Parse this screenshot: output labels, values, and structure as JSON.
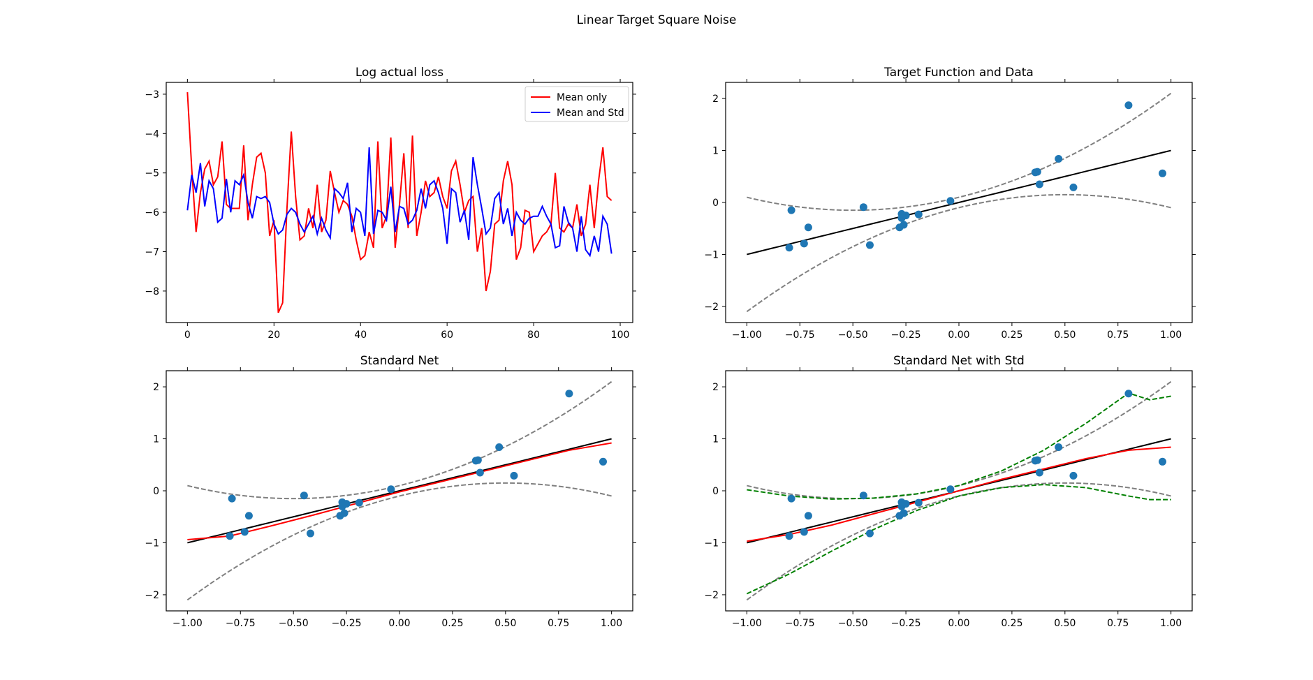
{
  "figure": {
    "suptitle": "Linear Target Square Noise"
  },
  "chart_data": [
    {
      "type": "line",
      "title": "Log actual loss",
      "xlabel": "",
      "ylabel": "",
      "xlim": [
        -4.9,
        102.9
      ],
      "ylim": [
        -8.8,
        -2.7
      ],
      "xticks": [
        0,
        20,
        40,
        60,
        80,
        100
      ],
      "yticks": [
        -8,
        -7,
        -6,
        -5,
        -4,
        -3
      ],
      "ticks_mirrored": true,
      "grid": false,
      "legend": "top-right",
      "series": [
        {
          "name": "Mean only",
          "color": "#ff0000",
          "x": [
            0,
            1,
            2,
            3,
            4,
            5,
            6,
            7,
            8,
            9,
            10,
            11,
            12,
            13,
            14,
            15,
            16,
            17,
            18,
            19,
            20,
            21,
            22,
            23,
            24,
            25,
            26,
            27,
            28,
            29,
            30,
            31,
            32,
            33,
            34,
            35,
            36,
            37,
            38,
            39,
            40,
            41,
            42,
            43,
            44,
            45,
            46,
            47,
            48,
            49,
            50,
            51,
            52,
            53,
            54,
            55,
            56,
            57,
            58,
            59,
            60,
            61,
            62,
            63,
            64,
            65,
            66,
            67,
            68,
            69,
            70,
            71,
            72,
            73,
            74,
            75,
            76,
            77,
            78,
            79,
            80,
            81,
            82,
            83,
            84,
            85,
            86,
            87,
            88,
            89,
            90,
            91,
            92,
            93,
            94,
            95,
            96,
            97,
            98
          ],
          "values": [
            -2.95,
            -4.9,
            -6.5,
            -5.5,
            -4.9,
            -4.7,
            -5.3,
            -5.1,
            -4.2,
            -5.8,
            -5.9,
            -5.9,
            -5.9,
            -4.3,
            -6.2,
            -5.3,
            -4.6,
            -4.5,
            -5.0,
            -6.6,
            -6.2,
            -8.55,
            -8.3,
            -5.9,
            -3.95,
            -5.6,
            -6.7,
            -6.6,
            -5.9,
            -6.4,
            -5.3,
            -6.5,
            -6.2,
            -4.95,
            -5.5,
            -6.0,
            -5.7,
            -5.8,
            -6.1,
            -6.7,
            -7.2,
            -7.1,
            -6.5,
            -6.9,
            -4.2,
            -6.4,
            -6.1,
            -4.1,
            -6.9,
            -5.8,
            -4.5,
            -6.4,
            -4.05,
            -6.6,
            -6.0,
            -5.2,
            -5.6,
            -5.5,
            -5.1,
            -5.6,
            -5.9,
            -4.95,
            -4.7,
            -5.3,
            -6.0,
            -5.7,
            -5.6,
            -7.0,
            -6.4,
            -8.0,
            -7.5,
            -6.3,
            -6.2,
            -5.2,
            -4.7,
            -5.3,
            -7.2,
            -6.9,
            -5.95,
            -6.0,
            -7.0,
            -6.8,
            -6.6,
            -6.5,
            -6.3,
            -5.0,
            -6.4,
            -6.5,
            -6.3,
            -6.4,
            -5.8,
            -6.6,
            -6.3,
            -5.3,
            -6.4,
            -5.2,
            -4.35,
            -5.6,
            -5.7
          ]
        },
        {
          "name": "Mean and Std",
          "color": "#0000ff",
          "x": [
            0,
            1,
            2,
            3,
            4,
            5,
            6,
            7,
            8,
            9,
            10,
            11,
            12,
            13,
            14,
            15,
            16,
            17,
            18,
            19,
            20,
            21,
            22,
            23,
            24,
            25,
            26,
            27,
            28,
            29,
            30,
            31,
            32,
            33,
            34,
            35,
            36,
            37,
            38,
            39,
            40,
            41,
            42,
            43,
            44,
            45,
            46,
            47,
            48,
            49,
            50,
            51,
            52,
            53,
            54,
            55,
            56,
            57,
            58,
            59,
            60,
            61,
            62,
            63,
            64,
            65,
            66,
            67,
            68,
            69,
            70,
            71,
            72,
            73,
            74,
            75,
            76,
            77,
            78,
            79,
            80,
            81,
            82,
            83,
            84,
            85,
            86,
            87,
            88,
            89,
            90,
            91,
            92,
            93,
            94,
            95,
            96,
            97,
            98
          ],
          "values": [
            -5.95,
            -5.05,
            -5.5,
            -4.75,
            -5.85,
            -5.2,
            -5.4,
            -6.25,
            -6.15,
            -5.15,
            -6.0,
            -5.2,
            -5.3,
            -5.05,
            -5.75,
            -6.15,
            -5.6,
            -5.65,
            -5.6,
            -5.75,
            -6.3,
            -6.55,
            -6.45,
            -6.05,
            -5.9,
            -6.0,
            -6.3,
            -6.5,
            -6.3,
            -6.1,
            -6.55,
            -6.15,
            -6.45,
            -6.65,
            -5.4,
            -5.5,
            -5.65,
            -5.25,
            -6.5,
            -5.9,
            -6.0,
            -6.6,
            -4.35,
            -6.55,
            -5.95,
            -6.0,
            -6.2,
            -5.35,
            -6.5,
            -5.85,
            -5.9,
            -6.3,
            -6.2,
            -5.95,
            -5.4,
            -5.9,
            -5.3,
            -5.2,
            -5.5,
            -5.9,
            -6.8,
            -5.4,
            -5.5,
            -6.25,
            -5.95,
            -6.7,
            -4.6,
            -5.3,
            -5.9,
            -6.55,
            -6.4,
            -5.65,
            -5.5,
            -6.3,
            -5.9,
            -6.6,
            -6.0,
            -6.2,
            -6.3,
            -6.15,
            -6.1,
            -6.1,
            -5.85,
            -6.1,
            -6.3,
            -6.9,
            -6.85,
            -5.85,
            -6.25,
            -6.4,
            -7.0,
            -6.1,
            -6.95,
            -7.1,
            -6.6,
            -7.0,
            -6.1,
            -6.3,
            -7.05
          ]
        }
      ]
    },
    {
      "type": "scatter",
      "title": "Target Function and Data",
      "xlabel": "",
      "ylabel": "",
      "xlim": [
        -1.1,
        1.1
      ],
      "ylim": [
        -2.31,
        2.31
      ],
      "xticks": [
        -1.0,
        -0.75,
        -0.5,
        -0.25,
        0.0,
        0.25,
        0.5,
        0.75,
        1.0
      ],
      "xtick_labels": [
        "−1.00",
        "−0.75",
        "−0.50",
        "−0.25",
        "0.00",
        "0.25",
        "0.50",
        "0.75",
        "1.00"
      ],
      "yticks": [
        -2,
        -1,
        0,
        1,
        2
      ],
      "ticks_mirrored": true,
      "grid": false,
      "points": {
        "color": "#1f77b4",
        "x": [
          -0.79,
          -0.8,
          -0.73,
          -0.71,
          -0.45,
          -0.42,
          -0.28,
          -0.27,
          -0.26,
          -0.25,
          -0.27,
          -0.19,
          -0.04,
          0.36,
          0.37,
          0.38,
          0.47,
          0.54,
          0.8,
          0.96
        ],
        "y": [
          -0.15,
          -0.87,
          -0.79,
          -0.48,
          -0.09,
          -0.82,
          -0.48,
          -0.3,
          -0.43,
          -0.25,
          -0.22,
          -0.23,
          0.03,
          0.58,
          0.59,
          0.35,
          0.84,
          0.29,
          1.87,
          0.56
        ]
      },
      "lines": [
        {
          "name": "",
          "style": "solid",
          "color": "#000000",
          "func": "target",
          "x_range": [
            -1,
            1
          ]
        },
        {
          "name": "",
          "style": "dashed",
          "color": "#808080",
          "func": "upper",
          "x_range": [
            -1,
            1
          ]
        },
        {
          "name": "",
          "style": "dashed",
          "color": "#808080",
          "func": "lower",
          "x_range": [
            -1,
            1
          ]
        }
      ]
    },
    {
      "type": "scatter",
      "title": "Standard Net",
      "xlabel": "",
      "ylabel": "",
      "xlim": [
        -1.1,
        1.1
      ],
      "ylim": [
        -2.31,
        2.31
      ],
      "xticks": [
        -1.0,
        -0.75,
        -0.5,
        -0.25,
        0.0,
        0.25,
        0.5,
        0.75,
        1.0
      ],
      "xtick_labels": [
        "−1.00",
        "−0.75",
        "−0.50",
        "−0.25",
        "0.00",
        "0.25",
        "0.50",
        "0.75",
        "1.00"
      ],
      "yticks": [
        -2,
        -1,
        0,
        1,
        2
      ],
      "ticks_mirrored": true,
      "grid": false,
      "points": {
        "color": "#1f77b4",
        "x": [
          -0.79,
          -0.8,
          -0.73,
          -0.71,
          -0.45,
          -0.42,
          -0.28,
          -0.27,
          -0.26,
          -0.25,
          -0.27,
          -0.19,
          -0.04,
          0.36,
          0.37,
          0.38,
          0.47,
          0.54,
          0.8,
          0.96
        ],
        "y": [
          -0.15,
          -0.87,
          -0.79,
          -0.48,
          -0.09,
          -0.82,
          -0.48,
          -0.3,
          -0.43,
          -0.25,
          -0.22,
          -0.23,
          0.03,
          0.58,
          0.59,
          0.35,
          0.84,
          0.29,
          1.87,
          0.56
        ]
      },
      "lines": [
        {
          "name": "",
          "style": "solid",
          "color": "#000000",
          "func": "target",
          "x_range": [
            -1,
            1
          ]
        },
        {
          "name": "",
          "style": "dashed",
          "color": "#808080",
          "func": "upper",
          "x_range": [
            -1,
            1
          ]
        },
        {
          "name": "",
          "style": "dashed",
          "color": "#808080",
          "func": "lower",
          "x_range": [
            -1,
            1
          ]
        },
        {
          "name": "",
          "style": "solid",
          "color": "#ff0000",
          "x": [
            -1.0,
            -0.8,
            -0.6,
            -0.4,
            -0.2,
            0.0,
            0.2,
            0.4,
            0.6,
            0.8,
            1.0
          ],
          "y": [
            -0.94,
            -0.87,
            -0.67,
            -0.46,
            -0.24,
            -0.02,
            0.18,
            0.38,
            0.58,
            0.78,
            0.92
          ]
        }
      ]
    },
    {
      "type": "scatter",
      "title": "Standard Net with Std",
      "xlabel": "",
      "ylabel": "",
      "xlim": [
        -1.1,
        1.1
      ],
      "ylim": [
        -2.31,
        2.31
      ],
      "xticks": [
        -1.0,
        -0.75,
        -0.5,
        -0.25,
        0.0,
        0.25,
        0.5,
        0.75,
        1.0
      ],
      "xtick_labels": [
        "−1.00",
        "−0.75",
        "−0.50",
        "−0.25",
        "0.00",
        "0.25",
        "0.50",
        "0.75",
        "1.00"
      ],
      "yticks": [
        -2,
        -1,
        0,
        1,
        2
      ],
      "ticks_mirrored": true,
      "grid": false,
      "points": {
        "color": "#1f77b4",
        "x": [
          -0.79,
          -0.8,
          -0.73,
          -0.71,
          -0.45,
          -0.42,
          -0.28,
          -0.27,
          -0.26,
          -0.25,
          -0.27,
          -0.19,
          -0.04,
          0.36,
          0.37,
          0.38,
          0.47,
          0.54,
          0.8,
          0.96
        ],
        "y": [
          -0.15,
          -0.87,
          -0.79,
          -0.48,
          -0.09,
          -0.82,
          -0.48,
          -0.3,
          -0.43,
          -0.25,
          -0.22,
          -0.23,
          0.03,
          0.58,
          0.59,
          0.35,
          0.84,
          0.29,
          1.87,
          0.56
        ]
      },
      "lines": [
        {
          "name": "",
          "style": "solid",
          "color": "#000000",
          "func": "target",
          "x_range": [
            -1,
            1
          ]
        },
        {
          "name": "",
          "style": "dashed",
          "color": "#808080",
          "func": "upper",
          "x_range": [
            -1,
            1
          ]
        },
        {
          "name": "",
          "style": "dashed",
          "color": "#808080",
          "func": "lower",
          "x_range": [
            -1,
            1
          ]
        },
        {
          "name": "",
          "style": "solid",
          "color": "#ff0000",
          "x": [
            -1.0,
            -0.8,
            -0.6,
            -0.4,
            -0.2,
            0.0,
            0.2,
            0.4,
            0.6,
            0.8,
            1.0
          ],
          "y": [
            -0.97,
            -0.84,
            -0.66,
            -0.44,
            -0.22,
            0.0,
            0.22,
            0.42,
            0.62,
            0.78,
            0.84
          ]
        },
        {
          "name": "",
          "style": "dashed",
          "color": "#008000",
          "x": [
            -1.0,
            -0.8,
            -0.6,
            -0.4,
            -0.2,
            0.0,
            0.2,
            0.4,
            0.6,
            0.8,
            0.9,
            1.0
          ],
          "y": [
            0.02,
            -0.1,
            -0.16,
            -0.14,
            -0.06,
            0.1,
            0.38,
            0.78,
            1.3,
            1.88,
            1.75,
            1.82
          ]
        },
        {
          "name": "",
          "style": "dashed",
          "color": "#008000",
          "x": [
            -1.0,
            -0.8,
            -0.6,
            -0.4,
            -0.2,
            0.0,
            0.2,
            0.4,
            0.6,
            0.8,
            0.9,
            1.0
          ],
          "y": [
            -1.98,
            -1.6,
            -1.16,
            -0.74,
            -0.38,
            -0.1,
            0.06,
            0.12,
            0.06,
            -0.1,
            -0.17,
            -0.17
          ]
        }
      ]
    }
  ]
}
